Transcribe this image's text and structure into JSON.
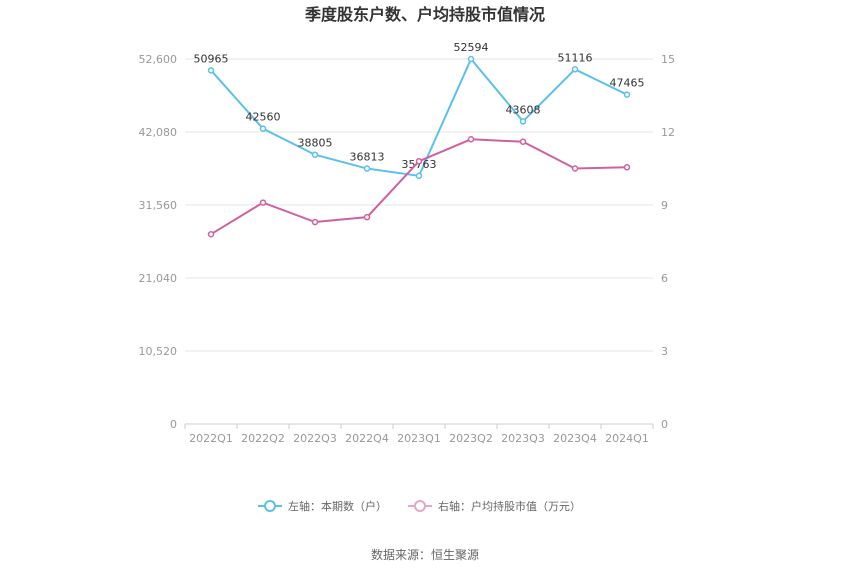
{
  "chart_data": {
    "type": "line",
    "title": "季度股东户数、户均持股市值情况",
    "categories": [
      "2022Q1",
      "2022Q2",
      "2022Q3",
      "2022Q4",
      "2023Q1",
      "2023Q2",
      "2023Q3",
      "2023Q4",
      "2024Q1"
    ],
    "series": [
      {
        "name": "左轴：本期数（户）",
        "axis": "left",
        "color": "#5bc0eb",
        "values": [
          50965,
          42560,
          38805,
          36813,
          35763,
          52594,
          43608,
          51116,
          47465
        ],
        "labels": [
          "50965",
          "42560",
          "38805",
          "36813",
          "35763",
          "52594",
          "43608",
          "51116",
          "47465"
        ]
      },
      {
        "name": "右轴：户均持股市值（万元）",
        "axis": "right",
        "color": "#d1609f",
        "values": [
          7.8,
          9.1,
          8.3,
          8.5,
          10.8,
          11.7,
          11.6,
          10.5,
          10.55
        ]
      }
    ],
    "left_axis": {
      "ticks": [
        "0",
        "10,520",
        "21,040",
        "31,560",
        "42,080",
        "52,600"
      ],
      "min": 0,
      "max": 52600
    },
    "right_axis": {
      "ticks": [
        "0",
        "3",
        "6",
        "9",
        "12",
        "15"
      ],
      "min": 0,
      "max": 15
    },
    "grid": true,
    "legend_position": "bottom"
  },
  "source": "数据来源：恒生聚源"
}
